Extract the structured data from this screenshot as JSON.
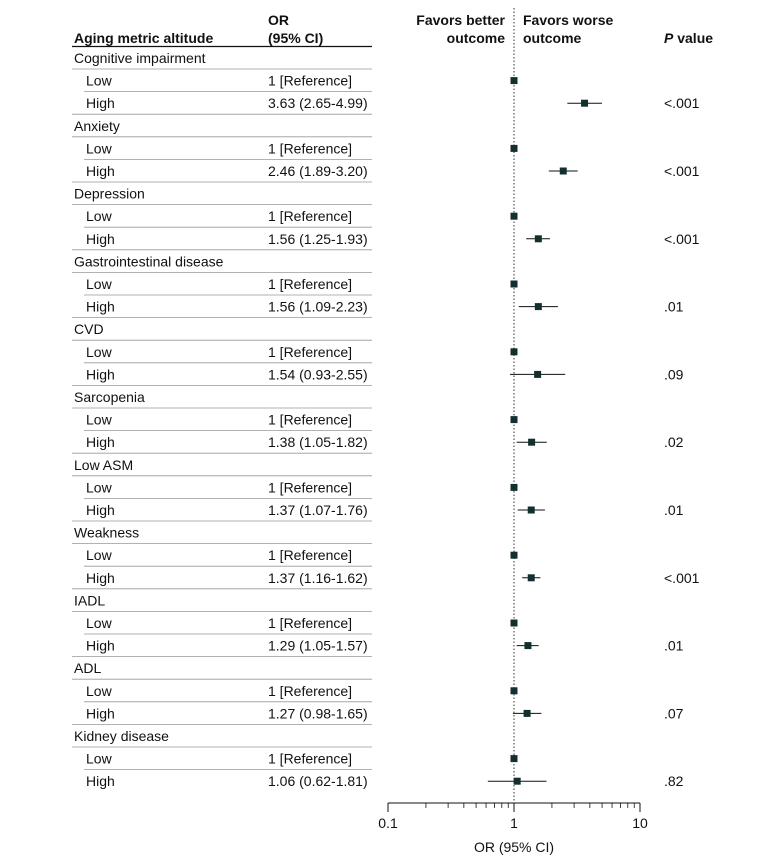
{
  "headers": {
    "metric": "Aging metric altitude",
    "or_line1": "OR",
    "or_line2": "(95% CI)",
    "favors_better_line1": "Favors better",
    "favors_better_line2": "outcome",
    "favors_worse_line1": "Favors worse",
    "favors_worse_line2": "outcome",
    "p_value_italic": "P",
    "p_value_rest": " value"
  },
  "chart_data": {
    "type": "forest",
    "xscale": "log",
    "xlim": [
      0.1,
      10
    ],
    "xticks": [
      "0.1",
      "1",
      "10"
    ],
    "xtick_values": [
      0.1,
      1,
      10
    ],
    "reference_line": 1,
    "xlabel": "OR (95% CI)",
    "groups": [
      {
        "name": "Cognitive impairment",
        "rows": [
          {
            "label": "Low",
            "or_text": "1 [Reference]",
            "or": 1,
            "reference": true,
            "p": ""
          },
          {
            "label": "High",
            "or_text": "3.63 (2.65-4.99)",
            "or": 3.63,
            "lo": 2.65,
            "hi": 4.99,
            "p": "<.001"
          }
        ]
      },
      {
        "name": "Anxiety",
        "rows": [
          {
            "label": "Low",
            "or_text": "1 [Reference]",
            "or": 1,
            "reference": true,
            "p": ""
          },
          {
            "label": "High",
            "or_text": "2.46 (1.89-3.20)",
            "or": 2.46,
            "lo": 1.89,
            "hi": 3.2,
            "p": "<.001"
          }
        ]
      },
      {
        "name": "Depression",
        "rows": [
          {
            "label": "Low",
            "or_text": "1 [Reference]",
            "or": 1,
            "reference": true,
            "p": ""
          },
          {
            "label": "High",
            "or_text": "1.56 (1.25-1.93)",
            "or": 1.56,
            "lo": 1.25,
            "hi": 1.93,
            "p": "<.001"
          }
        ]
      },
      {
        "name": "Gastrointestinal disease",
        "rows": [
          {
            "label": "Low",
            "or_text": "1 [Reference]",
            "or": 1,
            "reference": true,
            "p": ""
          },
          {
            "label": "High",
            "or_text": "1.56 (1.09-2.23)",
            "or": 1.56,
            "lo": 1.09,
            "hi": 2.23,
            "p": ".01"
          }
        ]
      },
      {
        "name": "CVD",
        "rows": [
          {
            "label": "Low",
            "or_text": "1 [Reference]",
            "or": 1,
            "reference": true,
            "p": ""
          },
          {
            "label": "High",
            "or_text": "1.54 (0.93-2.55)",
            "or": 1.54,
            "lo": 0.93,
            "hi": 2.55,
            "p": ".09"
          }
        ]
      },
      {
        "name": "Sarcopenia",
        "rows": [
          {
            "label": "Low",
            "or_text": "1 [Reference]",
            "or": 1,
            "reference": true,
            "p": ""
          },
          {
            "label": "High",
            "or_text": "1.38 (1.05-1.82)",
            "or": 1.38,
            "lo": 1.05,
            "hi": 1.82,
            "p": ".02"
          }
        ]
      },
      {
        "name": "Low ASM",
        "rows": [
          {
            "label": "Low",
            "or_text": "1 [Reference]",
            "or": 1,
            "reference": true,
            "p": ""
          },
          {
            "label": "High",
            "or_text": "1.37 (1.07-1.76)",
            "or": 1.37,
            "lo": 1.07,
            "hi": 1.76,
            "p": ".01"
          }
        ]
      },
      {
        "name": "Weakness",
        "rows": [
          {
            "label": "Low",
            "or_text": "1 [Reference]",
            "or": 1,
            "reference": true,
            "p": ""
          },
          {
            "label": "High",
            "or_text": "1.37 (1.16-1.62)",
            "or": 1.37,
            "lo": 1.16,
            "hi": 1.62,
            "p": "<.001"
          }
        ]
      },
      {
        "name": "IADL",
        "rows": [
          {
            "label": "Low",
            "or_text": "1 [Reference]",
            "or": 1,
            "reference": true,
            "p": ""
          },
          {
            "label": "High",
            "or_text": "1.29 (1.05-1.57)",
            "or": 1.29,
            "lo": 1.05,
            "hi": 1.57,
            "p": ".01"
          }
        ]
      },
      {
        "name": "ADL",
        "rows": [
          {
            "label": "Low",
            "or_text": "1 [Reference]",
            "or": 1,
            "reference": true,
            "p": ""
          },
          {
            "label": "High",
            "or_text": "1.27 (0.98-1.65)",
            "or": 1.27,
            "lo": 0.98,
            "hi": 1.65,
            "p": ".07"
          }
        ]
      },
      {
        "name": "Kidney disease",
        "rows": [
          {
            "label": "Low",
            "or_text": "1 [Reference]",
            "or": 1,
            "reference": true,
            "p": ""
          },
          {
            "label": "High",
            "or_text": "1.06 (0.62-1.81)",
            "or": 1.06,
            "lo": 0.62,
            "hi": 1.81,
            "p": ".82"
          }
        ]
      }
    ]
  }
}
